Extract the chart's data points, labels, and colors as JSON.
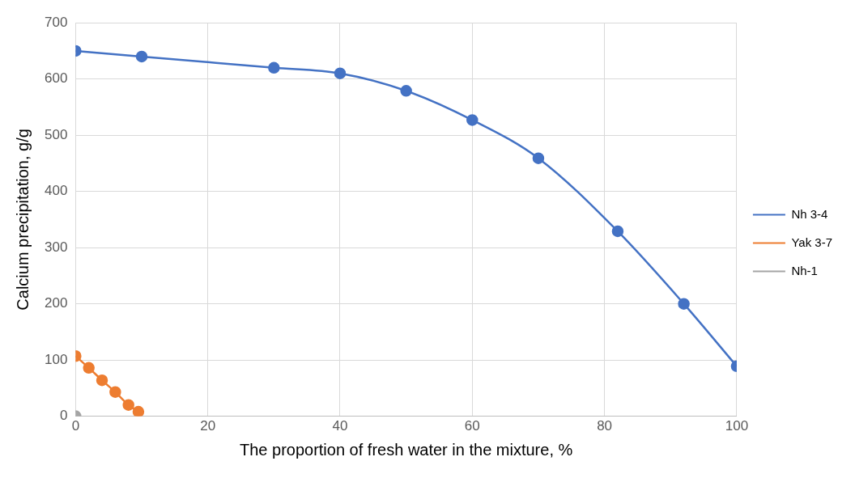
{
  "chart_data": {
    "type": "line",
    "xlabel": "The proportion of fresh water in the mixture, %",
    "ylabel": "Calcium precipitation, g/g",
    "xlim": [
      0,
      100
    ],
    "xticks": [
      0,
      20,
      40,
      60,
      80,
      100
    ],
    "ylim": [
      0,
      700
    ],
    "yticks": [
      0,
      100,
      200,
      300,
      400,
      500,
      600,
      700
    ],
    "grid": true,
    "legend": "right",
    "marker": "circle",
    "line_style": "solid",
    "series": [
      {
        "name": "Nh 3-4",
        "color": "#4472c4",
        "x": [
          0,
          10,
          30,
          40,
          50,
          60,
          70,
          82,
          92,
          100
        ],
        "values": [
          650,
          640,
          620,
          610,
          579,
          527,
          459,
          329,
          200,
          89
        ]
      },
      {
        "name": "Yak 3-7",
        "color": "#ed7d31",
        "x": [
          0,
          2,
          4,
          6,
          8,
          9.5
        ],
        "values": [
          107,
          86,
          64,
          43,
          20,
          8
        ]
      },
      {
        "name": "Nh-1",
        "color": "#a5a5a5",
        "x": [
          0
        ],
        "values": [
          0
        ]
      }
    ]
  }
}
